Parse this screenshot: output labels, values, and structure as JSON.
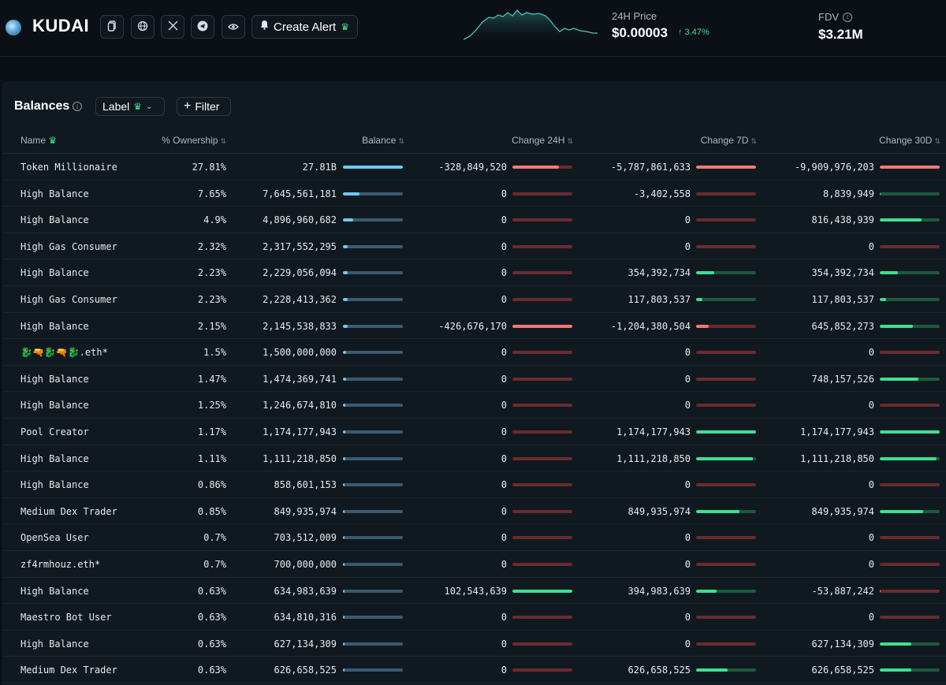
{
  "header": {
    "token_name": "KUDAI",
    "create_alert_label": "Create Alert",
    "price_label": "24H Price",
    "price_value": "$0.00003",
    "price_change": "↑ 3.47%",
    "fdv_label": "FDV",
    "fdv_value": "$3.21M",
    "icons": [
      "copy-icon",
      "globe-icon",
      "x-icon",
      "telegram-icon",
      "eye-icon",
      "bell-icon"
    ]
  },
  "panel": {
    "title": "Balances",
    "label_dropdown": "Label",
    "filter_label": "Filter"
  },
  "columns": {
    "name": "Name",
    "ownership": "% Ownership",
    "balance": "Balance",
    "change_24h": "Change 24H",
    "change_7d": "Change 7D",
    "change_30d": "Change 30D"
  },
  "colors": {
    "positive": "#3ee08f",
    "negative": "#f07b78",
    "balance_bar": "#6ec9f2",
    "background": "#0b1016"
  },
  "rows": [
    {
      "name": "Token Millionaire",
      "own": "27.81%",
      "bal": "27.81B",
      "bal_frac": 1.0,
      "c24": "-328,849,520",
      "c24_frac": -0.77,
      "c7": "-5,787,861,633",
      "c7_frac": -1.0,
      "c30": "-9,909,976,203",
      "c30_frac": -1.0
    },
    {
      "name": "High Balance",
      "own": "7.65%",
      "bal": "7,645,561,181",
      "bal_frac": 0.27,
      "c24": "0",
      "c24_frac": 0,
      "c7": "-3,402,558",
      "c7_frac": 0,
      "c30": "8,839,949",
      "c30_frac": 0.01
    },
    {
      "name": "High Balance",
      "own": "4.9%",
      "bal": "4,896,960,682",
      "bal_frac": 0.17,
      "c24": "0",
      "c24_frac": 0,
      "c7": "0",
      "c7_frac": 0,
      "c30": "816,438,939",
      "c30_frac": 0.7
    },
    {
      "name": "High Gas Consumer",
      "own": "2.32%",
      "bal": "2,317,552,295",
      "bal_frac": 0.08,
      "c24": "0",
      "c24_frac": 0,
      "c7": "0",
      "c7_frac": 0,
      "c30": "0",
      "c30_frac": 0
    },
    {
      "name": "High Balance",
      "own": "2.23%",
      "bal": "2,229,056,094",
      "bal_frac": 0.08,
      "c24": "0",
      "c24_frac": 0,
      "c7": "354,392,734",
      "c7_frac": 0.3,
      "c30": "354,392,734",
      "c30_frac": 0.3
    },
    {
      "name": "High Gas Consumer",
      "own": "2.23%",
      "bal": "2,228,413,362",
      "bal_frac": 0.08,
      "c24": "0",
      "c24_frac": 0,
      "c7": "117,803,537",
      "c7_frac": 0.1,
      "c30": "117,803,537",
      "c30_frac": 0.1
    },
    {
      "name": "High Balance",
      "own": "2.15%",
      "bal": "2,145,538,833",
      "bal_frac": 0.08,
      "c24": "-426,676,170",
      "c24_frac": -1.0,
      "c7": "-1,204,380,504",
      "c7_frac": -0.21,
      "c30": "645,852,273",
      "c30_frac": 0.55
    },
    {
      "name": "🐉🔫🐉🔫🐉.eth*",
      "own": "1.5%",
      "bal": "1,500,000,000",
      "bal_frac": 0.05,
      "c24": "0",
      "c24_frac": 0,
      "c7": "0",
      "c7_frac": 0,
      "c30": "0",
      "c30_frac": 0
    },
    {
      "name": "High Balance",
      "own": "1.47%",
      "bal": "1,474,369,741",
      "bal_frac": 0.05,
      "c24": "0",
      "c24_frac": 0,
      "c7": "0",
      "c7_frac": 0,
      "c30": "748,157,526",
      "c30_frac": 0.64
    },
    {
      "name": "High Balance",
      "own": "1.25%",
      "bal": "1,246,674,810",
      "bal_frac": 0.04,
      "c24": "0",
      "c24_frac": 0,
      "c7": "0",
      "c7_frac": 0,
      "c30": "0",
      "c30_frac": 0
    },
    {
      "name": "Pool Creator",
      "own": "1.17%",
      "bal": "1,174,177,943",
      "bal_frac": 0.04,
      "c24": "0",
      "c24_frac": 0,
      "c7": "1,174,177,943",
      "c7_frac": 1.0,
      "c30": "1,174,177,943",
      "c30_frac": 1.0
    },
    {
      "name": "High Balance",
      "own": "1.11%",
      "bal": "1,111,218,850",
      "bal_frac": 0.04,
      "c24": "0",
      "c24_frac": 0,
      "c7": "1,111,218,850",
      "c7_frac": 0.95,
      "c30": "1,111,218,850",
      "c30_frac": 0.95
    },
    {
      "name": "High Balance",
      "own": "0.86%",
      "bal": "858,601,153",
      "bal_frac": 0.03,
      "c24": "0",
      "c24_frac": 0,
      "c7": "0",
      "c7_frac": 0,
      "c30": "0",
      "c30_frac": 0
    },
    {
      "name": "Medium Dex Trader",
      "own": "0.85%",
      "bal": "849,935,974",
      "bal_frac": 0.03,
      "c24": "0",
      "c24_frac": 0,
      "c7": "849,935,974",
      "c7_frac": 0.72,
      "c30": "849,935,974",
      "c30_frac": 0.72
    },
    {
      "name": "OpenSea User",
      "own": "0.7%",
      "bal": "703,512,009",
      "bal_frac": 0.03,
      "c24": "0",
      "c24_frac": 0,
      "c7": "0",
      "c7_frac": 0,
      "c30": "0",
      "c30_frac": 0
    },
    {
      "name": "zf4rmhouz.eth*",
      "own": "0.7%",
      "bal": "700,000,000",
      "bal_frac": 0.03,
      "c24": "0",
      "c24_frac": 0,
      "c7": "0",
      "c7_frac": 0,
      "c30": "0",
      "c30_frac": 0
    },
    {
      "name": "High Balance",
      "own": "0.63%",
      "bal": "634,983,639",
      "bal_frac": 0.02,
      "c24": "102,543,639",
      "c24_frac": 1.0,
      "c7": "394,983,639",
      "c7_frac": 0.34,
      "c30": "-53,887,242",
      "c30_frac": -0.01
    },
    {
      "name": "Maestro Bot User",
      "own": "0.63%",
      "bal": "634,810,316",
      "bal_frac": 0.02,
      "c24": "0",
      "c24_frac": 0,
      "c7": "0",
      "c7_frac": 0,
      "c30": "0",
      "c30_frac": 0
    },
    {
      "name": "High Balance",
      "own": "0.63%",
      "bal": "627,134,309",
      "bal_frac": 0.02,
      "c24": "0",
      "c24_frac": 0,
      "c7": "0",
      "c7_frac": 0,
      "c30": "627,134,309",
      "c30_frac": 0.53
    },
    {
      "name": "Medium Dex Trader",
      "own": "0.63%",
      "bal": "626,658,525",
      "bal_frac": 0.02,
      "c24": "0",
      "c24_frac": 0,
      "c7": "626,658,525",
      "c7_frac": 0.53,
      "c30": "626,658,525",
      "c30_frac": 0.53
    }
  ]
}
